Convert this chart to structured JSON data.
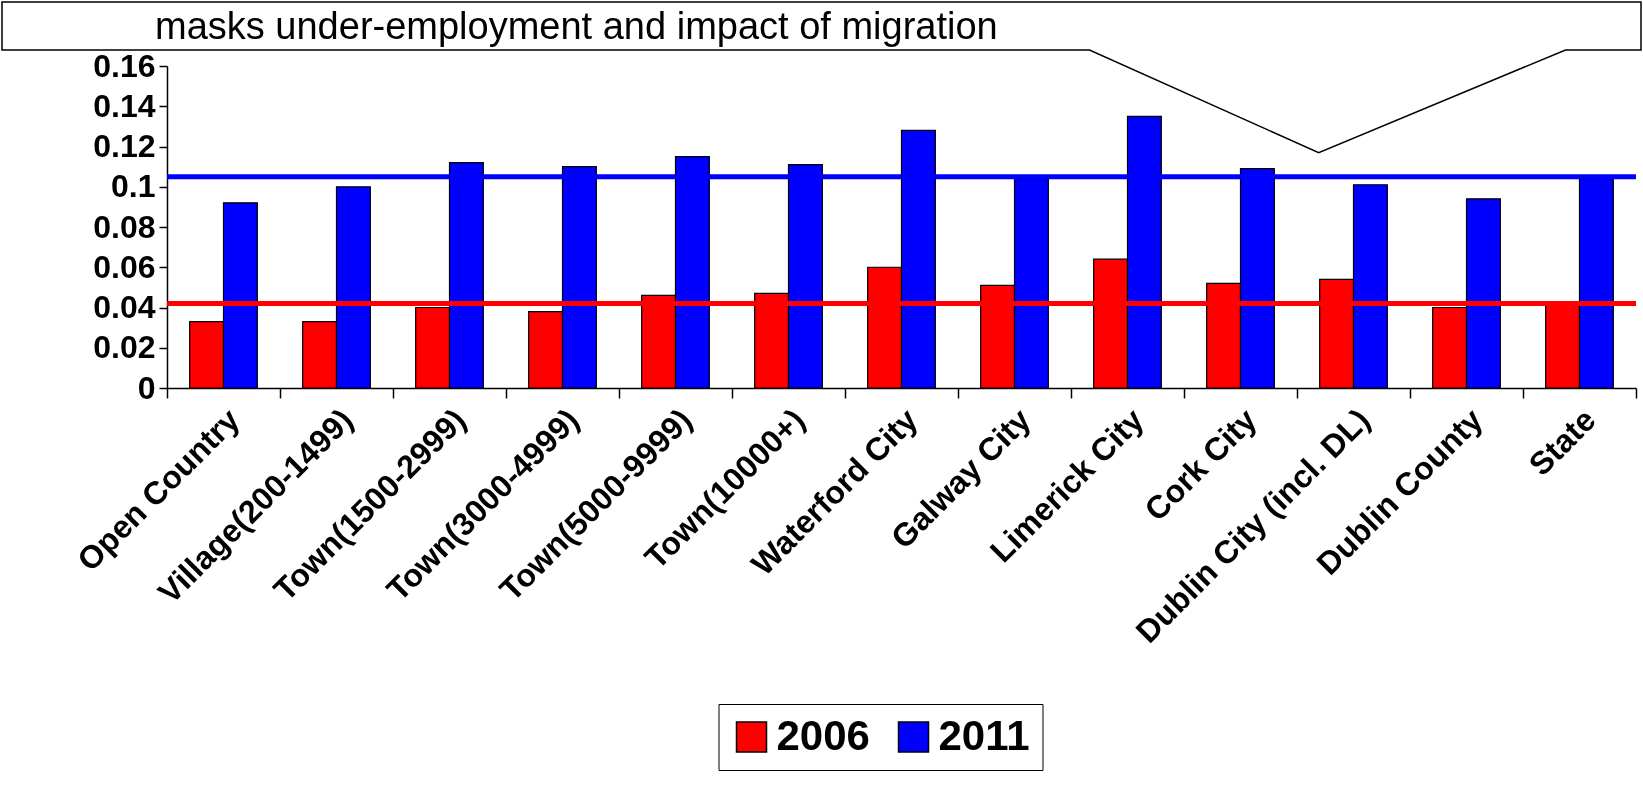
{
  "chart_data": {
    "type": "bar",
    "annotations": [
      "masks under-employment and impact of migration"
    ],
    "categories": [
      "Open Country",
      "Village(200-1499)",
      "Town(1500-2999)",
      "Town(3000-4999)",
      "Town(5000-9999)",
      "Town(10000+)",
      "Waterford City",
      "Galway City",
      "Limerick City",
      "Cork City",
      "Dublin City (incl. DL)",
      "Dublin County",
      "State"
    ],
    "series": [
      {
        "name": "2006",
        "color": "#ff0000",
        "values": [
          0.033,
          0.033,
          0.04,
          0.038,
          0.046,
          0.047,
          0.06,
          0.051,
          0.064,
          0.052,
          0.054,
          0.04,
          0.041
        ]
      },
      {
        "name": "2011",
        "color": "#0000ff",
        "values": [
          0.092,
          0.1,
          0.112,
          0.11,
          0.115,
          0.111,
          0.128,
          0.104,
          0.135,
          0.109,
          0.101,
          0.094,
          0.104
        ]
      }
    ],
    "ylim": [
      0,
      0.16
    ],
    "yticks": [
      0,
      0.02,
      0.04,
      0.06,
      0.08,
      0.1,
      0.12,
      0.14,
      0.16
    ],
    "ref_lines": [
      {
        "axis": "y",
        "value": 0.105,
        "color": "#0000ff"
      },
      {
        "axis": "y",
        "value": 0.042,
        "color": "#ff0000"
      }
    ],
    "grid": false,
    "legend": "bottom"
  }
}
